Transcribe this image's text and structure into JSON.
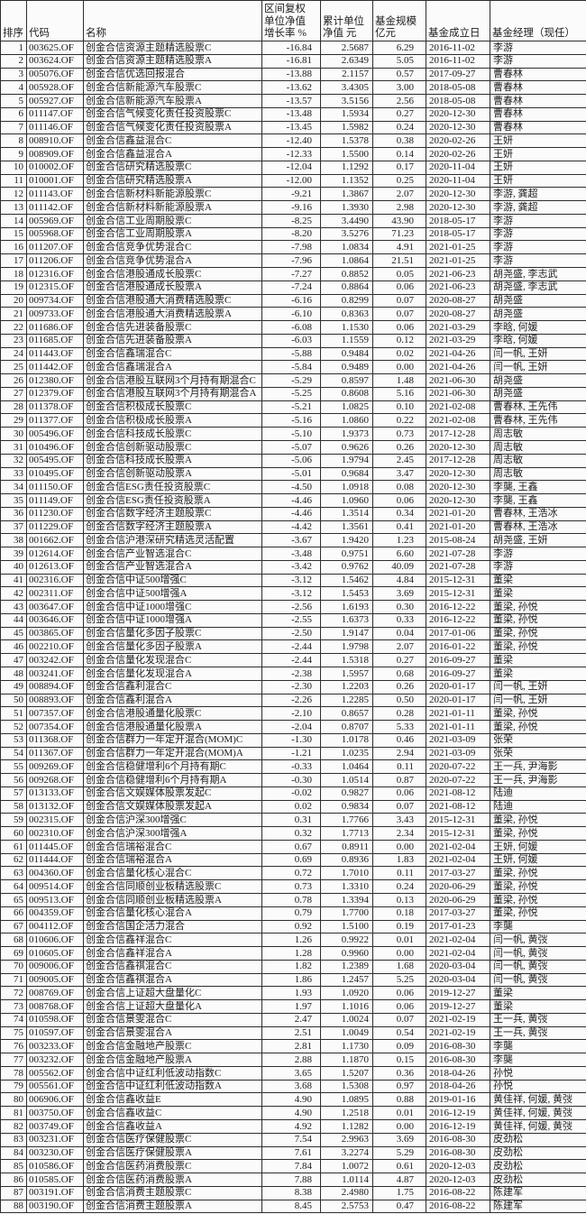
{
  "table": {
    "columns": [
      {
        "key": "rank",
        "label_lines": [
          "排序"
        ]
      },
      {
        "key": "code",
        "label_lines": [
          "代码"
        ]
      },
      {
        "key": "name",
        "label_lines": [
          "名称"
        ]
      },
      {
        "key": "growth",
        "label_lines": [
          "区间复权",
          "单位净值",
          "增长率 %"
        ]
      },
      {
        "key": "nav",
        "label_lines": [
          "累计单位",
          "净值 元"
        ]
      },
      {
        "key": "scale",
        "label_lines": [
          "基金规模",
          "亿元"
        ]
      },
      {
        "key": "date",
        "label_lines": [
          "基金成立日"
        ]
      },
      {
        "key": "manager",
        "label_lines": [
          "基金经理（现任）"
        ]
      }
    ],
    "rows": [
      [
        "1",
        "003625.OF",
        "创金合信资源主题精选股票C",
        "-16.84",
        "2.5687",
        "6.29",
        "2016-11-02",
        "李游"
      ],
      [
        "2",
        "003624.OF",
        "创金合信资源主题精选股票A",
        "-16.81",
        "2.6349",
        "5.05",
        "2016-11-02",
        "李游"
      ],
      [
        "3",
        "005076.OF",
        "创金合信优选回报混合",
        "-13.88",
        "2.1157",
        "0.57",
        "2017-09-27",
        "曹春林"
      ],
      [
        "4",
        "005928.OF",
        "创金合信新能源汽车股票C",
        "-13.62",
        "3.4305",
        "3.00",
        "2018-05-08",
        "曹春林"
      ],
      [
        "5",
        "005927.OF",
        "创金合信新能源汽车股票A",
        "-13.57",
        "3.5156",
        "2.56",
        "2018-05-08",
        "曹春林"
      ],
      [
        "6",
        "011147.OF",
        "创金合信气候变化责任投资股票C",
        "-13.48",
        "1.5934",
        "0.27",
        "2020-12-30",
        "曹春林"
      ],
      [
        "7",
        "011146.OF",
        "创金合信气候变化责任投资股票A",
        "-13.45",
        "1.5982",
        "0.24",
        "2020-12-30",
        "曹春林"
      ],
      [
        "8",
        "008910.OF",
        "创金合信鑫益混合C",
        "-12.40",
        "1.5378",
        "0.38",
        "2020-02-26",
        "王妍"
      ],
      [
        "9",
        "008909.OF",
        "创金合信鑫益混合A",
        "-12.33",
        "1.5500",
        "0.14",
        "2020-02-26",
        "王妍"
      ],
      [
        "10",
        "010002.OF",
        "创金合信研究精选股票C",
        "-12.04",
        "1.1292",
        "0.17",
        "2020-11-04",
        "王妍"
      ],
      [
        "11",
        "010001.OF",
        "创金合信研究精选股票A",
        "-12.00",
        "1.1352",
        "0.25",
        "2020-11-04",
        "王妍"
      ],
      [
        "12",
        "011143.OF",
        "创金合信新材料新能源股票C",
        "-9.21",
        "1.3867",
        "2.07",
        "2020-12-30",
        "李游, 龚超"
      ],
      [
        "13",
        "011142.OF",
        "创金合信新材料新能源股票A",
        "-9.16",
        "1.3930",
        "2.98",
        "2020-12-30",
        "李游, 龚超"
      ],
      [
        "14",
        "005969.OF",
        "创金合信工业周期股票C",
        "-8.25",
        "3.4490",
        "43.90",
        "2018-05-17",
        "李游"
      ],
      [
        "15",
        "005968.OF",
        "创金合信工业周期股票A",
        "-8.20",
        "3.5276",
        "71.23",
        "2018-05-17",
        "李游"
      ],
      [
        "16",
        "011207.OF",
        "创金合信竞争优势混合C",
        "-7.98",
        "1.0834",
        "4.91",
        "2021-01-25",
        "李游"
      ],
      [
        "17",
        "011206.OF",
        "创金合信竞争优势混合A",
        "-7.96",
        "1.0864",
        "21.51",
        "2021-01-25",
        "李游"
      ],
      [
        "18",
        "012316.OF",
        "创金合信港股通成长股票C",
        "-7.27",
        "0.8852",
        "0.05",
        "2021-06-23",
        "胡尧盛, 李志武"
      ],
      [
        "19",
        "012315.OF",
        "创金合信港股通成长股票A",
        "-7.24",
        "0.8864",
        "0.06",
        "2021-06-23",
        "胡尧盛, 李志武"
      ],
      [
        "20",
        "009734.OF",
        "创金合信港股通大消费精选股票C",
        "-6.16",
        "0.8299",
        "0.07",
        "2020-08-27",
        "胡尧盛"
      ],
      [
        "21",
        "009733.OF",
        "创金合信港股通大消费精选股票A",
        "-6.10",
        "0.8363",
        "0.07",
        "2020-08-27",
        "胡尧盛"
      ],
      [
        "22",
        "011686.OF",
        "创金合信先进装备股票C",
        "-6.08",
        "1.1530",
        "0.06",
        "2021-03-29",
        "李晗, 何媛"
      ],
      [
        "23",
        "011685.OF",
        "创金合信先进装备股票A",
        "-6.03",
        "1.1559",
        "0.12",
        "2021-03-29",
        "李晗, 何媛"
      ],
      [
        "24",
        "011443.OF",
        "创金合信鑫瑞混合C",
        "-5.88",
        "0.9484",
        "0.02",
        "2021-04-26",
        "闫一帆, 王妍"
      ],
      [
        "25",
        "011442.OF",
        "创金合信鑫瑞混合A",
        "-5.84",
        "0.9489",
        "0.00",
        "2021-04-26",
        "闫一帆, 王妍"
      ],
      [
        "26",
        "012380.OF",
        "创金合信港股互联网3个月持有期混合C",
        "-5.29",
        "0.8597",
        "1.48",
        "2021-06-30",
        "胡尧盛"
      ],
      [
        "27",
        "012379.OF",
        "创金合信港股互联网3个月持有期混合A",
        "-5.25",
        "0.8608",
        "5.16",
        "2021-06-30",
        "胡尧盛"
      ],
      [
        "28",
        "011378.OF",
        "创金合信积极成长股票C",
        "-5.21",
        "1.0825",
        "0.10",
        "2021-02-08",
        "曹春林, 王先伟"
      ],
      [
        "29",
        "011377.OF",
        "创金合信积极成长股票A",
        "-5.16",
        "1.0860",
        "0.22",
        "2021-02-08",
        "曹春林, 王先伟"
      ],
      [
        "30",
        "005496.OF",
        "创金合信科技成长股票C",
        "-5.10",
        "1.9373",
        "0.73",
        "2017-12-28",
        "周志敏"
      ],
      [
        "31",
        "010496.OF",
        "创金合信创新驱动股票C",
        "-5.07",
        "0.9626",
        "0.26",
        "2020-12-30",
        "周志敏"
      ],
      [
        "32",
        "005495.OF",
        "创金合信科技成长股票A",
        "-5.06",
        "1.9794",
        "2.45",
        "2017-12-28",
        "周志敏"
      ],
      [
        "33",
        "010495.OF",
        "创金合信创新驱动股票A",
        "-5.01",
        "0.9684",
        "3.47",
        "2020-12-30",
        "周志敏"
      ],
      [
        "34",
        "011150.OF",
        "创金合信ESG责任投资股票C",
        "-4.50",
        "1.0918",
        "0.08",
        "2020-12-30",
        "李龑, 王鑫"
      ],
      [
        "35",
        "011149.OF",
        "创金合信ESG责任投资股票A",
        "-4.46",
        "1.0960",
        "0.06",
        "2020-12-30",
        "李龑, 王鑫"
      ],
      [
        "36",
        "011230.OF",
        "创金合信数字经济主题股票C",
        "-4.46",
        "1.3514",
        "0.34",
        "2021-01-20",
        "曹春林, 王浩冰"
      ],
      [
        "37",
        "011229.OF",
        "创金合信数字经济主题股票A",
        "-4.42",
        "1.3561",
        "0.41",
        "2021-01-20",
        "曹春林, 王浩冰"
      ],
      [
        "38",
        "001662.OF",
        "创金合信沪港深研究精选灵活配置",
        "-3.67",
        "1.9420",
        "1.23",
        "2015-08-24",
        "胡尧盛, 王妍"
      ],
      [
        "39",
        "012614.OF",
        "创金合信产业智选混合C",
        "-3.48",
        "0.9751",
        "6.60",
        "2021-07-28",
        "李游"
      ],
      [
        "40",
        "012613.OF",
        "创金合信产业智选混合A",
        "-3.42",
        "0.9762",
        "40.09",
        "2021-07-28",
        "李游"
      ],
      [
        "41",
        "002316.OF",
        "创金合信中证500增强C",
        "-3.12",
        "1.5462",
        "4.84",
        "2015-12-31",
        "董梁"
      ],
      [
        "42",
        "002311.OF",
        "创金合信中证500增强A",
        "-3.12",
        "1.5453",
        "3.69",
        "2015-12-31",
        "董梁"
      ],
      [
        "43",
        "003647.OF",
        "创金合信中证1000增强C",
        "-2.56",
        "1.6193",
        "0.30",
        "2016-12-22",
        "董梁, 孙悦"
      ],
      [
        "44",
        "003646.OF",
        "创金合信中证1000增强A",
        "-2.55",
        "1.6373",
        "0.33",
        "2016-12-22",
        "董梁, 孙悦"
      ],
      [
        "45",
        "003865.OF",
        "创金合信量化多因子股票C",
        "-2.50",
        "1.9147",
        "0.04",
        "2017-01-06",
        "董梁, 孙悦"
      ],
      [
        "46",
        "002210.OF",
        "创金合信量化多因子股票A",
        "-2.44",
        "1.9798",
        "2.07",
        "2016-01-22",
        "董梁, 孙悦"
      ],
      [
        "47",
        "003242.OF",
        "创金合信量化发现混合C",
        "-2.44",
        "1.5318",
        "0.27",
        "2016-09-27",
        "董梁"
      ],
      [
        "48",
        "003241.OF",
        "创金合信量化发现混合A",
        "-2.38",
        "1.5957",
        "0.68",
        "2016-09-27",
        "董梁"
      ],
      [
        "49",
        "008894.OF",
        "创金合信鑫利混合C",
        "-2.30",
        "1.2203",
        "0.26",
        "2020-01-17",
        "闫一帆, 王妍"
      ],
      [
        "50",
        "008893.OF",
        "创金合信鑫利混合A",
        "-2.26",
        "1.2285",
        "0.50",
        "2020-01-17",
        "闫一帆, 王妍"
      ],
      [
        "51",
        "007357.OF",
        "创金合信港股通量化股票C",
        "-2.10",
        "0.8657",
        "0.28",
        "2021-01-11",
        "董梁, 孙悦"
      ],
      [
        "52",
        "007354.OF",
        "创金合信港股通量化股票A",
        "-2.04",
        "0.8707",
        "5.33",
        "2021-01-11",
        "董梁, 孙悦"
      ],
      [
        "53",
        "011368.OF",
        "创金合信群力一年定开混合(MOM)C",
        "-1.30",
        "1.0178",
        "0.46",
        "2021-03-09",
        "张荣"
      ],
      [
        "54",
        "011367.OF",
        "创金合信群力一年定开混合(MOM)A",
        "-1.21",
        "1.0235",
        "2.94",
        "2021-03-09",
        "张荣"
      ],
      [
        "55",
        "009269.OF",
        "创金合信稳健增利6个月持有期C",
        "-0.33",
        "1.0464",
        "0.11",
        "2020-07-22",
        "王一兵, 尹海影"
      ],
      [
        "56",
        "009268.OF",
        "创金合信稳健增利6个月持有期A",
        "-0.30",
        "1.0514",
        "0.87",
        "2020-07-22",
        "王一兵, 尹海影"
      ],
      [
        "57",
        "013133.OF",
        "创金合信文娱媒体股票发起C",
        "-0.02",
        "0.9827",
        "0.06",
        "2021-08-12",
        "陆迪"
      ],
      [
        "58",
        "013132.OF",
        "创金合信文娱媒体股票发起A",
        "0.02",
        "0.9834",
        "0.07",
        "2021-08-12",
        "陆迪"
      ],
      [
        "59",
        "002315.OF",
        "创金合信沪深300增强C",
        "0.31",
        "1.7766",
        "3.43",
        "2015-12-31",
        "董梁, 孙悦"
      ],
      [
        "60",
        "002310.OF",
        "创金合信沪深300增强A",
        "0.32",
        "1.7713",
        "2.34",
        "2015-12-31",
        "董梁, 孙悦"
      ],
      [
        "61",
        "011445.OF",
        "创金合信瑞裕混合C",
        "0.67",
        "0.8911",
        "0.00",
        "2021-02-04",
        "王妍, 何媛"
      ],
      [
        "62",
        "011444.OF",
        "创金合信瑞裕混合A",
        "0.69",
        "0.8936",
        "1.83",
        "2021-02-04",
        "王妍, 何媛"
      ],
      [
        "63",
        "004360.OF",
        "创金合信量化核心混合C",
        "0.72",
        "1.7010",
        "0.11",
        "2017-03-27",
        "董梁, 孙悦"
      ],
      [
        "64",
        "009514.OF",
        "创金合信同顺创业板精选股票C",
        "0.73",
        "1.3310",
        "0.24",
        "2020-06-29",
        "董梁, 孙悦"
      ],
      [
        "65",
        "009513.OF",
        "创金合信同顺创业板精选股票A",
        "0.78",
        "1.3394",
        "0.13",
        "2020-06-29",
        "董梁, 孙悦"
      ],
      [
        "66",
        "004359.OF",
        "创金合信量化核心混合A",
        "0.79",
        "1.7700",
        "0.18",
        "2017-03-27",
        "董梁, 孙悦"
      ],
      [
        "67",
        "004112.OF",
        "创金合信国企活力混合",
        "0.92",
        "1.5100",
        "0.19",
        "2017-01-23",
        "李龑"
      ],
      [
        "68",
        "010606.OF",
        "创金合信鑫祥混合C",
        "1.26",
        "0.9922",
        "0.01",
        "2021-02-04",
        "闫一帆, 黄弢"
      ],
      [
        "69",
        "010605.OF",
        "创金合信鑫祥混合A",
        "1.28",
        "0.9960",
        "0.00",
        "2021-02-04",
        "闫一帆, 黄弢"
      ],
      [
        "70",
        "009006.OF",
        "创金合信鑫祺混合C",
        "1.82",
        "1.2389",
        "1.68",
        "2020-03-04",
        "闫一帆, 黄弢"
      ],
      [
        "71",
        "009005.OF",
        "创金合信鑫祺混合A",
        "1.86",
        "1.2457",
        "5.25",
        "2020-03-04",
        "闫一帆, 黄弢"
      ],
      [
        "72",
        "008769.OF",
        "创金合信上证超大盘量化C",
        "1.93",
        "1.0920",
        "0.06",
        "2019-12-27",
        "董梁"
      ],
      [
        "73",
        "008768.OF",
        "创金合信上证超大盘量化A",
        "1.97",
        "1.1016",
        "0.06",
        "2019-12-27",
        "董梁"
      ],
      [
        "74",
        "010598.OF",
        "创金合信景雯混合C",
        "2.47",
        "1.0024",
        "0.07",
        "2021-02-19",
        "王一兵, 黄弢"
      ],
      [
        "75",
        "010597.OF",
        "创金合信景雯混合A",
        "2.51",
        "1.0049",
        "0.54",
        "2021-02-19",
        "王一兵, 黄弢"
      ],
      [
        "76",
        "003233.OF",
        "创金合信金融地产股票C",
        "2.81",
        "1.1730",
        "0.09",
        "2016-08-30",
        "李龑"
      ],
      [
        "77",
        "003232.OF",
        "创金合信金融地产股票A",
        "2.88",
        "1.1870",
        "0.15",
        "2016-08-30",
        "李龑"
      ],
      [
        "78",
        "005562.OF",
        "创金合信中证红利低波动指数C",
        "3.65",
        "1.5207",
        "0.36",
        "2018-04-26",
        "孙悦"
      ],
      [
        "79",
        "005561.OF",
        "创金合信中证红利低波动指数A",
        "3.68",
        "1.5308",
        "0.97",
        "2018-04-26",
        "孙悦"
      ],
      [
        "80",
        "006906.OF",
        "创金合信鑫收益E",
        "4.90",
        "1.0895",
        "0.88",
        "2019-01-16",
        "黄佳祥, 何媛, 黄弢"
      ],
      [
        "81",
        "003750.OF",
        "创金合信鑫收益C",
        "4.90",
        "1.2518",
        "0.01",
        "2016-12-19",
        "黄佳祥, 何媛, 黄弢"
      ],
      [
        "82",
        "003749.OF",
        "创金合信鑫收益A",
        "4.92",
        "1.1282",
        "0.00",
        "2016-12-19",
        "黄佳祥, 何媛, 黄弢"
      ],
      [
        "83",
        "003231.OF",
        "创金合信医疗保健股票C",
        "7.54",
        "2.9963",
        "3.69",
        "2016-08-30",
        "皮劲松"
      ],
      [
        "84",
        "003230.OF",
        "创金合信医疗保健股票A",
        "7.61",
        "3.2274",
        "5.29",
        "2016-08-30",
        "皮劲松"
      ],
      [
        "85",
        "010586.OF",
        "创金合信医药消费股票C",
        "7.84",
        "1.0072",
        "0.61",
        "2020-12-03",
        "皮劲松"
      ],
      [
        "86",
        "010585.OF",
        "创金合信医药消费股票A",
        "7.88",
        "1.0114",
        "4.87",
        "2020-12-03",
        "皮劲松"
      ],
      [
        "87",
        "003191.OF",
        "创金合信消费主题股票C",
        "8.38",
        "2.4980",
        "1.75",
        "2016-08-22",
        "陈建军"
      ],
      [
        "88",
        "003190.OF",
        "创金合信消费主题股票A",
        "8.45",
        "2.5753",
        "0.47",
        "2016-08-22",
        "陈建军"
      ]
    ]
  },
  "colors": {
    "background": "#fbfbfb",
    "border": "#2e2e2e",
    "text": "#1c1c1c"
  }
}
